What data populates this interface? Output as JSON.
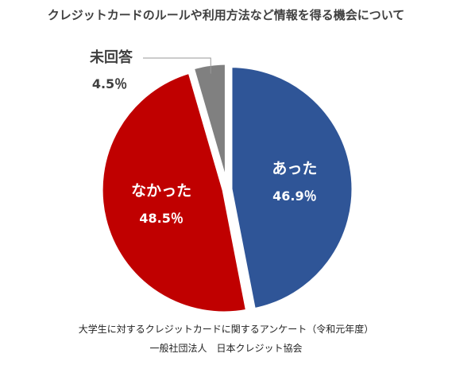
{
  "chart_data": {
    "type": "pie",
    "title": "クレジットカードのルールや利用方法など情報を得る機会について",
    "slices": [
      {
        "label": "あった",
        "value": 46.9,
        "display": "46.9％",
        "color": "#2F5597"
      },
      {
        "label": "なかった",
        "value": 48.5,
        "display": "48.5％",
        "color": "#C00000"
      },
      {
        "label": "未回答",
        "value": 4.5,
        "display": "4.5％",
        "color": "#808080"
      }
    ],
    "start": "12 o'clock",
    "direction": "clockwise",
    "legend": "none",
    "source": [
      "大学生に対するクレジットカードに関するアンケート（令和元年度）",
      "一般社団法人　日本クレジット協会"
    ]
  }
}
